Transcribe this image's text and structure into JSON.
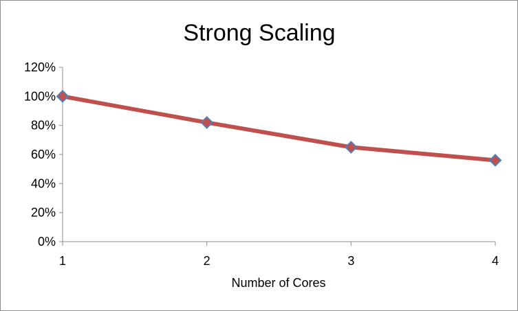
{
  "chart_data": {
    "type": "line",
    "title": "Strong Scaling",
    "xlabel": "Number of Cores",
    "ylabel": "",
    "x": [
      1,
      2,
      3,
      4
    ],
    "series": [
      {
        "values": [
          100,
          82,
          65,
          56
        ]
      }
    ],
    "ylim": [
      0,
      120
    ],
    "yticks": [
      "0%",
      "20%",
      "40%",
      "60%",
      "80%",
      "100%",
      "120%"
    ],
    "xticks": [
      "1",
      "2",
      "3",
      "4"
    ],
    "grid": false,
    "legend": "none",
    "line_color": "#c0504d",
    "marker_color": "#4f81bd"
  }
}
